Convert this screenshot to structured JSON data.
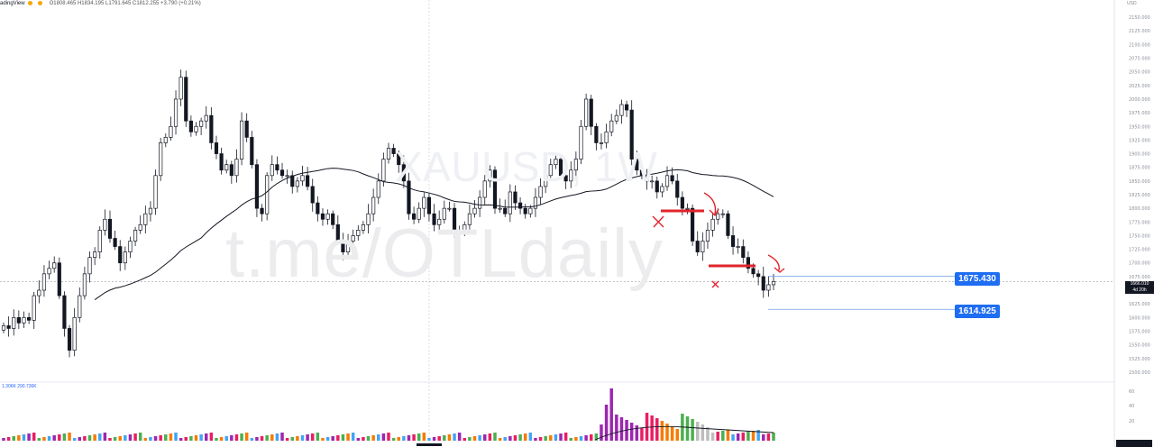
{
  "header": {
    "brand": "adingView",
    "ohlc": "O1808.465  H1834.195  L1791.645  C1812.255  +3.790 (+0.21%)"
  },
  "watermark": {
    "symbol": "XAUUSD, 1W",
    "channel": "t.me/OTLdaily"
  },
  "volume_header": "1.306K  290.736K",
  "chart_data": {
    "type": "candlestick",
    "title": "XAUUSD, 1W",
    "ylim": [
      1485,
      2165
    ],
    "y_ticks": [
      2150,
      2125,
      2100,
      2075,
      2050,
      2025,
      2000,
      1975,
      1950,
      1925,
      1900,
      1875,
      1850,
      1825,
      1800,
      1775,
      1750,
      1725,
      1700,
      1675,
      1650,
      1625,
      1600,
      1575,
      1550,
      1525,
      1500
    ],
    "y_tick_labels": [
      "2150.000",
      "2125.000",
      "2100.000",
      "2075.000",
      "2050.000",
      "2025.000",
      "2000.000",
      "1975.000",
      "1950.000",
      "1925.000",
      "1900.000",
      "1875.000",
      "1850.000",
      "1825.000",
      "1800.000",
      "1775.000",
      "1750.000",
      "1725.000",
      "1700.000",
      "1675.000",
      "1650.000",
      "1625.000",
      "1600.000",
      "1575.000",
      "1550.000",
      "1525.000",
      "1500.000"
    ],
    "top_axis_label": "USD",
    "last_price": 1666.01,
    "last_price_label": "1666.010",
    "last_price_sublabel": "4d 20h",
    "levels": [
      {
        "value": 1675.43,
        "label": "1675.430"
      },
      {
        "value": 1614.925,
        "label": "1614.925"
      }
    ],
    "closes": [
      1585,
      1580,
      1600,
      1590,
      1600,
      1595,
      1640,
      1650,
      1680,
      1690,
      1700,
      1640,
      1580,
      1540,
      1600,
      1640,
      1680,
      1710,
      1720,
      1760,
      1780,
      1745,
      1730,
      1700,
      1720,
      1740,
      1760,
      1770,
      1790,
      1800,
      1860,
      1920,
      1930,
      1950,
      2000,
      2040,
      1960,
      1940,
      1950,
      1960,
      1970,
      1920,
      1900,
      1870,
      1880,
      1860,
      1890,
      1960,
      1930,
      1880,
      1800,
      1790,
      1860,
      1880,
      1870,
      1860,
      1860,
      1840,
      1850,
      1860,
      1840,
      1810,
      1790,
      1780,
      1790,
      1770,
      1740,
      1720,
      1740,
      1750,
      1760,
      1770,
      1790,
      1820,
      1850,
      1890,
      1910,
      1900,
      1880,
      1850,
      1790,
      1780,
      1800,
      1820,
      1790,
      1770,
      1780,
      1800,
      1800,
      1760,
      1760,
      1770,
      1790,
      1800,
      1820,
      1850,
      1870,
      1800,
      1800,
      1790,
      1830,
      1810,
      1800,
      1790,
      1800,
      1820,
      1840,
      1860,
      1880,
      1890,
      1860,
      1850,
      1870,
      1890,
      1950,
      2000,
      1950,
      1920,
      1920,
      1940,
      1960,
      1970,
      1990,
      1980,
      1890,
      1870,
      1860,
      1850,
      1850,
      1830,
      1840,
      1860,
      1850,
      1820,
      1800,
      1800,
      1740,
      1720,
      1740,
      1760,
      1780,
      1790,
      1790,
      1750,
      1730,
      1730,
      1710,
      1690,
      1680,
      1675,
      1650,
      1660,
      1666
    ]
  }
}
